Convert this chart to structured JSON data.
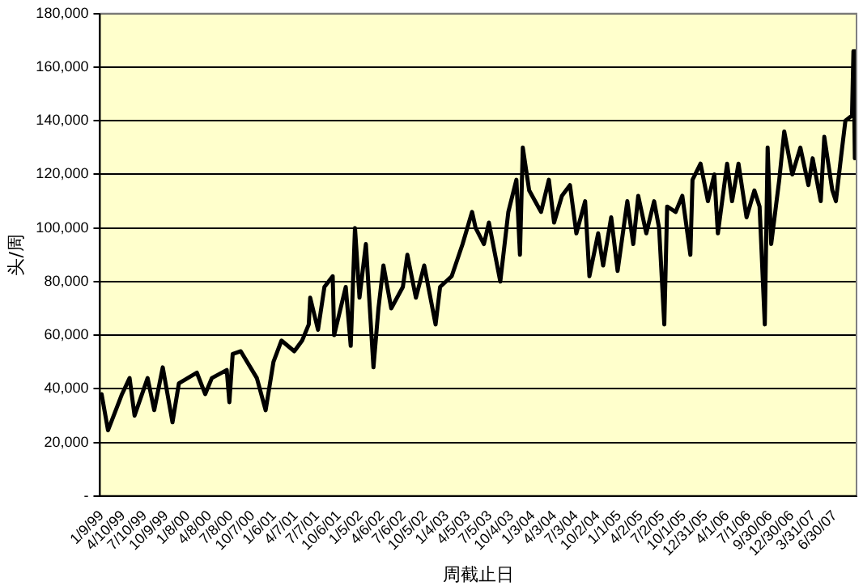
{
  "chart_data": {
    "type": "line",
    "xlabel": "周截止日",
    "ylabel": "头/周",
    "grid": "y",
    "legend": false,
    "marker": "none",
    "line_style": "solid",
    "ylim": [
      0,
      180000
    ],
    "yticks": [
      {
        "value": 0,
        "label": "-"
      },
      {
        "value": 20000,
        "label": "20,000"
      },
      {
        "value": 40000,
        "label": "40,000"
      },
      {
        "value": 60000,
        "label": "60,000"
      },
      {
        "value": 80000,
        "label": "80,000"
      },
      {
        "value": 100000,
        "label": "100,000"
      },
      {
        "value": 120000,
        "label": "120,000"
      },
      {
        "value": 140000,
        "label": "140,000"
      },
      {
        "value": 160000,
        "label": "160,000"
      },
      {
        "value": 180000,
        "label": "180,000"
      }
    ],
    "xlim": [
      "1999-01-02",
      "2007-09-29"
    ],
    "xticks": [
      {
        "value": "1999-01-09",
        "label": "1/9/99"
      },
      {
        "value": "1999-04-10",
        "label": "4/10/99"
      },
      {
        "value": "1999-07-10",
        "label": "7/10/99"
      },
      {
        "value": "1999-10-09",
        "label": "10/9/99"
      },
      {
        "value": "2000-01-08",
        "label": "1/8/00"
      },
      {
        "value": "2000-04-08",
        "label": "4/8/00"
      },
      {
        "value": "2000-07-08",
        "label": "7/8/00"
      },
      {
        "value": "2000-10-07",
        "label": "10/7/00"
      },
      {
        "value": "2001-01-06",
        "label": "1/6/01"
      },
      {
        "value": "2001-04-07",
        "label": "4/7/01"
      },
      {
        "value": "2001-07-07",
        "label": "7/7/01"
      },
      {
        "value": "2001-10-06",
        "label": "10/6/01"
      },
      {
        "value": "2002-01-05",
        "label": "1/5/02"
      },
      {
        "value": "2002-04-06",
        "label": "4/6/02"
      },
      {
        "value": "2002-07-06",
        "label": "7/6/02"
      },
      {
        "value": "2002-10-05",
        "label": "10/5/02"
      },
      {
        "value": "2003-01-04",
        "label": "1/4/03"
      },
      {
        "value": "2003-04-05",
        "label": "4/5/03"
      },
      {
        "value": "2003-07-05",
        "label": "7/5/03"
      },
      {
        "value": "2003-10-04",
        "label": "10/4/03"
      },
      {
        "value": "2004-01-03",
        "label": "1/3/04"
      },
      {
        "value": "2004-04-03",
        "label": "4/3/04"
      },
      {
        "value": "2004-07-03",
        "label": "7/3/04"
      },
      {
        "value": "2004-10-02",
        "label": "10/2/04"
      },
      {
        "value": "2005-01-01",
        "label": "1/1/05"
      },
      {
        "value": "2005-04-02",
        "label": "4/2/05"
      },
      {
        "value": "2005-07-02",
        "label": "7/2/05"
      },
      {
        "value": "2005-10-01",
        "label": "10/1/05"
      },
      {
        "value": "2005-12-31",
        "label": "12/31/05"
      },
      {
        "value": "2006-04-01",
        "label": "4/1/06"
      },
      {
        "value": "2006-07-01",
        "label": "7/1/06"
      },
      {
        "value": "2006-09-30",
        "label": "9/30/06"
      },
      {
        "value": "2006-12-30",
        "label": "12/30/06"
      },
      {
        "value": "2007-03-31",
        "label": "3/31/07"
      },
      {
        "value": "2007-06-30",
        "label": "6/30/07"
      }
    ],
    "series": [
      {
        "color": "#000000",
        "x": [
          "1999-01-09",
          "1999-02-05",
          "1999-04-05",
          "1999-05-07",
          "1999-05-28",
          "1999-07-22",
          "1999-08-19",
          "1999-09-24",
          "1999-11-04",
          "1999-12-01",
          "2000-02-15",
          "2000-03-21",
          "2000-04-18",
          "2000-06-20",
          "2000-07-01",
          "2000-07-15",
          "2000-08-18",
          "2000-10-25",
          "2000-12-01",
          "2001-01-03",
          "2001-02-06",
          "2001-04-01",
          "2001-05-04",
          "2001-06-01",
          "2001-06-07",
          "2001-07-10",
          "2001-08-06",
          "2001-09-10",
          "2001-09-16",
          "2001-11-04",
          "2001-11-25",
          "2001-12-13",
          "2002-01-01",
          "2002-01-28",
          "2002-03-01",
          "2002-03-22",
          "2002-04-12",
          "2002-05-15",
          "2002-07-03",
          "2002-07-22",
          "2002-08-27",
          "2002-10-01",
          "2002-11-18",
          "2002-12-07",
          "2003-01-25",
          "2003-03-12",
          "2003-04-21",
          "2003-05-06",
          "2003-06-10",
          "2003-07-01",
          "2003-08-18",
          "2003-09-21",
          "2003-10-25",
          "2003-11-09",
          "2003-11-21",
          "2003-12-18",
          "2004-02-06",
          "2004-03-10",
          "2004-04-01",
          "2004-05-04",
          "2004-06-07",
          "2004-07-04",
          "2004-08-10",
          "2004-08-28",
          "2004-10-04",
          "2004-10-25",
          "2004-11-28",
          "2004-12-25",
          "2005-02-04",
          "2005-03-01",
          "2005-03-22",
          "2005-04-25",
          "2005-05-28",
          "2005-06-18",
          "2005-07-10",
          "2005-07-22",
          "2005-08-27",
          "2005-09-24",
          "2005-10-28",
          "2005-11-06",
          "2005-12-10",
          "2006-01-10",
          "2006-02-06",
          "2006-02-21",
          "2006-04-01",
          "2006-04-22",
          "2006-05-19",
          "2006-06-22",
          "2006-07-25",
          "2006-08-16",
          "2006-09-07",
          "2006-09-19",
          "2006-10-04",
          "2006-11-07",
          "2006-11-28",
          "2007-01-01",
          "2007-02-04",
          "2007-03-10",
          "2007-03-28",
          "2007-05-01",
          "2007-05-16",
          "2007-06-19",
          "2007-07-04",
          "2007-07-25",
          "2007-08-13",
          "2007-09-10",
          "2007-09-16",
          "2007-09-22"
        ],
        "values": [
          38000,
          24500,
          38000,
          44000,
          30000,
          44000,
          32000,
          48000,
          27500,
          42000,
          46000,
          38000,
          44000,
          47000,
          35000,
          53000,
          54000,
          44000,
          32000,
          50000,
          58000,
          54000,
          58000,
          64000,
          74000,
          62000,
          78000,
          82000,
          60000,
          78000,
          56000,
          100000,
          74000,
          94000,
          48000,
          70000,
          86000,
          70000,
          78000,
          90000,
          74000,
          86000,
          64000,
          78000,
          82000,
          94000,
          106000,
          100000,
          94000,
          102000,
          80000,
          106000,
          118000,
          90000,
          130000,
          114000,
          106000,
          118000,
          102000,
          112000,
          116000,
          98000,
          110000,
          82000,
          98000,
          86000,
          104000,
          84000,
          110000,
          94000,
          112000,
          98000,
          110000,
          100000,
          64000,
          108000,
          106000,
          112000,
          90000,
          118000,
          124000,
          110000,
          120000,
          98000,
          124000,
          110000,
          124000,
          104000,
          114000,
          108000,
          64000,
          130000,
          94000,
          118000,
          136000,
          120000,
          130000,
          116000,
          126000,
          110000,
          134000,
          114000,
          110000,
          126000,
          140000,
          142000,
          166000,
          126000
        ]
      }
    ]
  }
}
